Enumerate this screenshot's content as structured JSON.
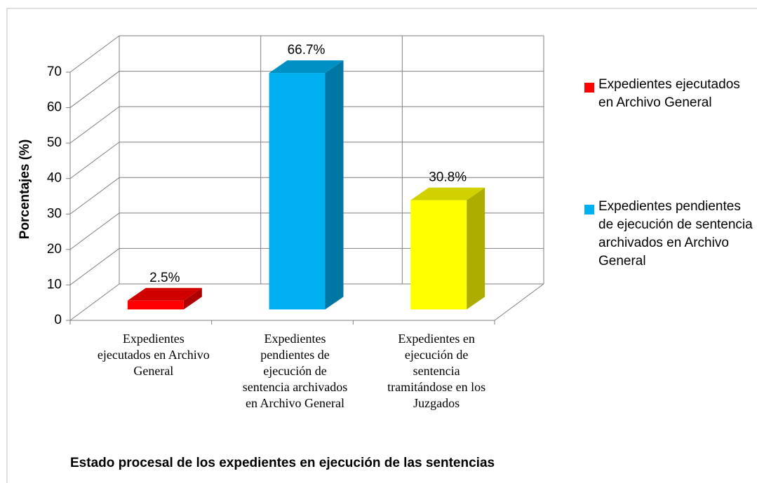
{
  "chart_data": {
    "type": "bar3d",
    "x_label": "Estado procesal de los expedientes en ejecución de las sentencias",
    "y_label": "Porcentajes (%)",
    "categories": [
      "Expedientes ejecutados en Archivo General",
      "Expedientes pendientes de ejecución de sentencia archivados en Archivo General",
      "Expedientes en ejecución de sentencia tramitándose en los Juzgados"
    ],
    "values": [
      2.5,
      66.7,
      30.8
    ],
    "value_labels": [
      "2.5%",
      "66.7%",
      "30.8%"
    ],
    "colors": [
      "#ff0000",
      "#00b0f0",
      "#ffff00"
    ],
    "legend": [
      {
        "name": "Expedientes ejecutados en Archivo General",
        "color": "#ff0000"
      },
      {
        "name": "Expedientes pendientes de ejecución de sentencia archivados en Archivo General",
        "color": "#00b0f0"
      }
    ],
    "ylim": [
      0,
      70
    ],
    "yticks": [
      0,
      10,
      20,
      30,
      40,
      50,
      60,
      70
    ],
    "grid": true
  }
}
